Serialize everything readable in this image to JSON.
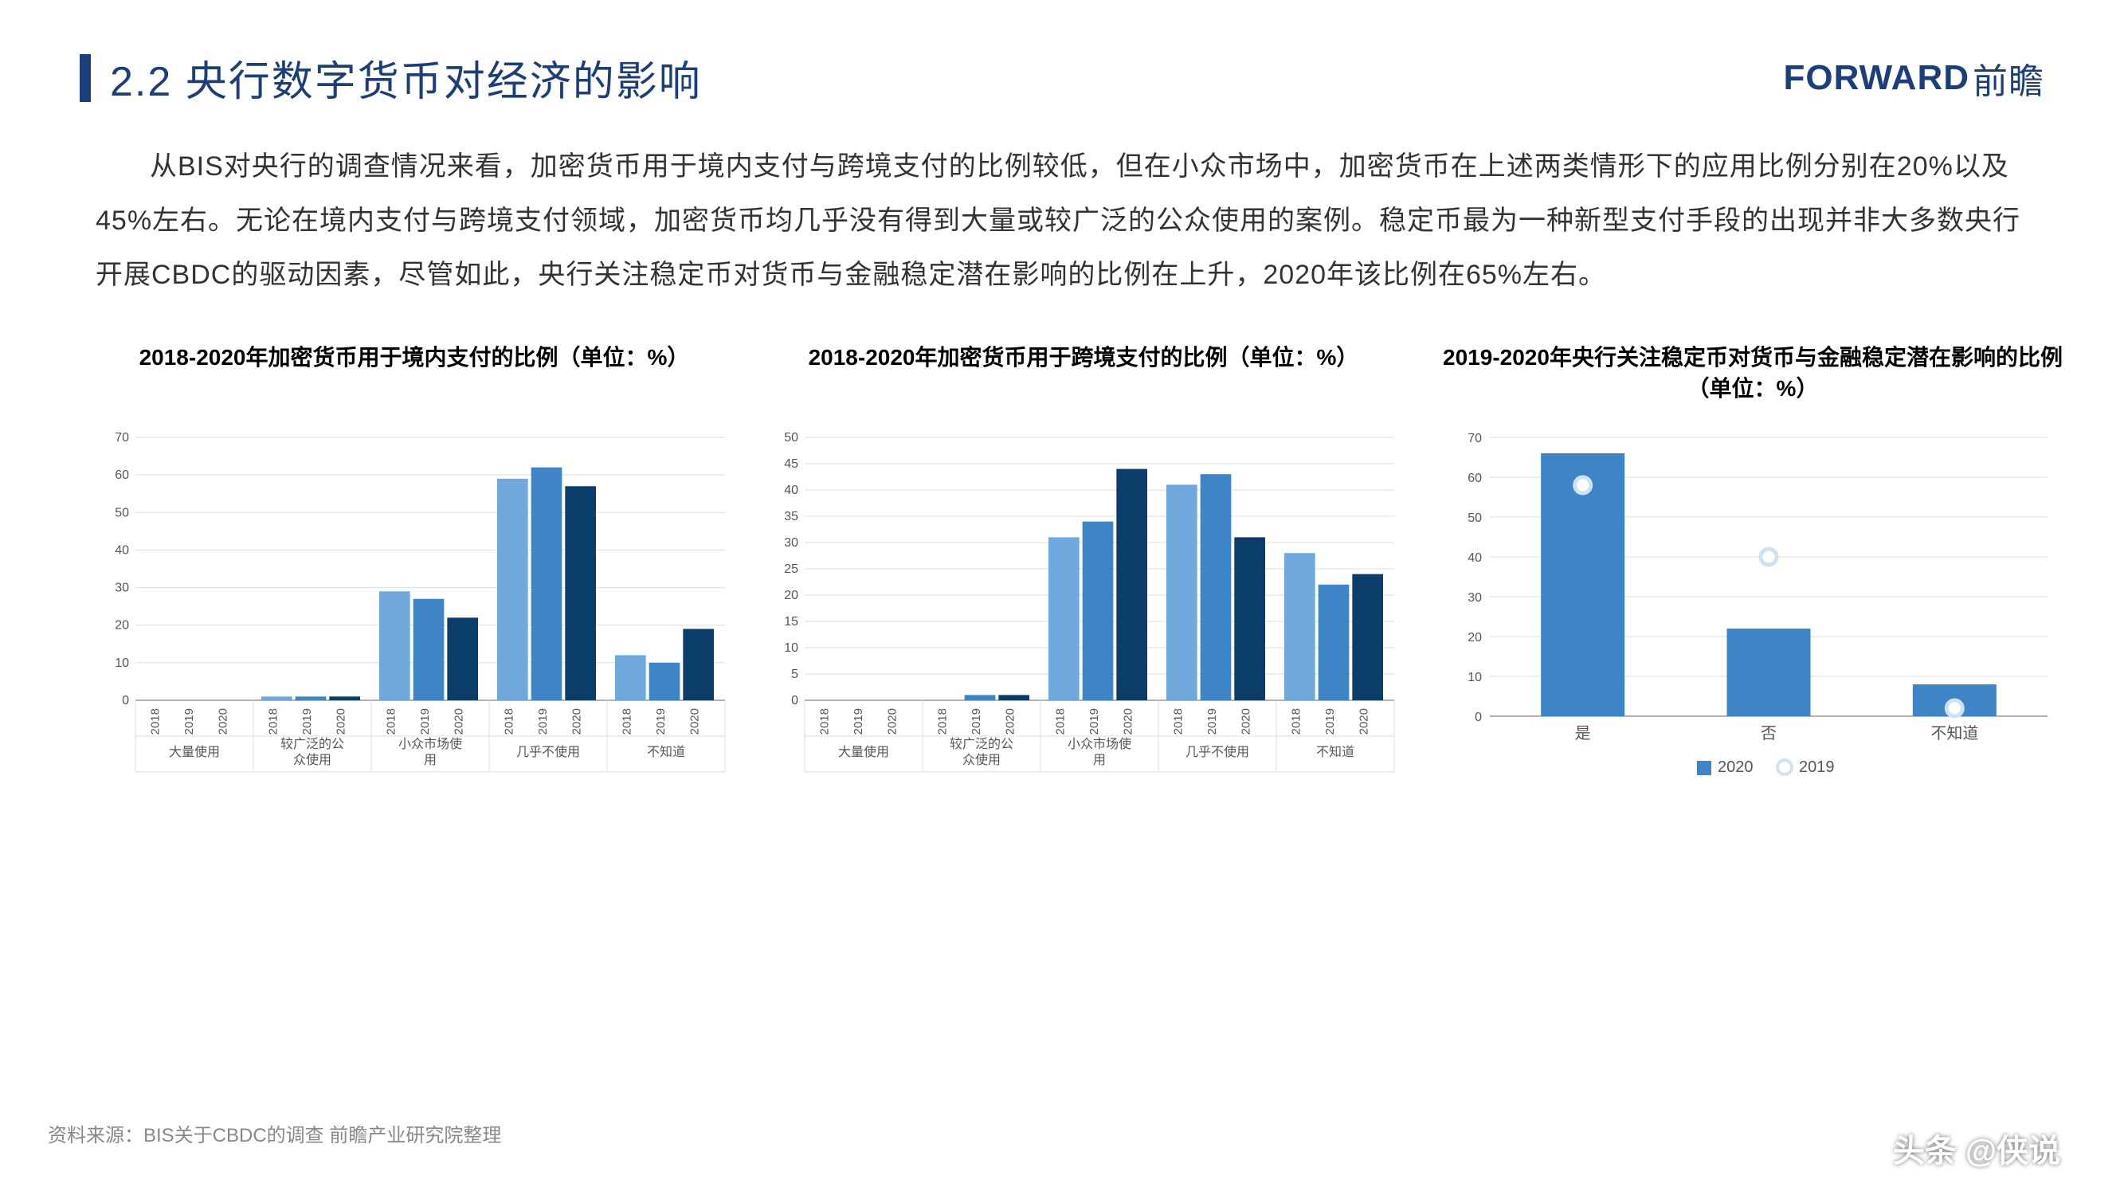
{
  "header": {
    "section_number": "2.2",
    "title": "央行数字货币对经济的影响",
    "logo_en": "FORWARD",
    "logo_cn": "前瞻"
  },
  "body_paragraph": "从BIS对央行的调查情况来看，加密货币用于境内支付与跨境支付的比例较低，但在小众市场中，加密货币在上述两类情形下的应用比例分别在20%以及45%左右。无论在境内支付与跨境支付领域，加密货币均几乎没有得到大量或较广泛的公众使用的案例。稳定币最为一种新型支付手段的出现并非大多数央行开展CBDC的驱动因素，尽管如此，央行关注稳定币对货币与金融稳定潜在影响的比例在上升，2020年该比例在65%左右。",
  "colors": {
    "year_2018": "#6fa8dc",
    "year_2019": "#3d85c6",
    "year_2020": "#0b3d6b",
    "bar_2020_c3": "#3d85c6",
    "dot_2019": "#cfe2f3",
    "axis": "#999999",
    "grid": "#dddddd",
    "text": "#555555"
  },
  "chart1": {
    "type": "grouped-bar",
    "title": "2018-2020年加密货币用于境内支付的比例（单位：%）",
    "categories": [
      "大量使用",
      "较广泛的公众使用",
      "小众市场使用",
      "几乎不使用",
      "不知道"
    ],
    "years": [
      "2018",
      "2019",
      "2020"
    ],
    "values": [
      [
        0,
        0,
        0
      ],
      [
        1,
        1,
        1
      ],
      [
        29,
        27,
        22
      ],
      [
        59,
        62,
        57
      ],
      [
        12,
        10,
        19
      ]
    ],
    "ylim": [
      0,
      70
    ],
    "ytick_step": 10,
    "bar_colors": [
      "#6fa8dc",
      "#3d85c6",
      "#0b3d6b"
    ]
  },
  "chart2": {
    "type": "grouped-bar",
    "title": "2018-2020年加密货币用于跨境支付的比例（单位：%）",
    "categories": [
      "大量使用",
      "较广泛的公众使用",
      "小众市场使用",
      "几乎不使用",
      "不知道"
    ],
    "years": [
      "2018",
      "2019",
      "2020"
    ],
    "values": [
      [
        0,
        0,
        0
      ],
      [
        0,
        1,
        1
      ],
      [
        31,
        34,
        44
      ],
      [
        41,
        43,
        31
      ],
      [
        28,
        22,
        24
      ]
    ],
    "ylim": [
      0,
      50
    ],
    "ytick_step": 5,
    "bar_colors": [
      "#6fa8dc",
      "#3d85c6",
      "#0b3d6b"
    ]
  },
  "chart3": {
    "type": "bar-with-dots",
    "title": "2019-2020年央行关注稳定币对货币与金融稳定潜在影响的比例（单位：%）",
    "categories": [
      "是",
      "否",
      "不知道"
    ],
    "bar_series_label": "2020",
    "dot_series_label": "2019",
    "bar_values": [
      66,
      22,
      8
    ],
    "dot_values": [
      58,
      40,
      2
    ],
    "ylim": [
      0,
      70
    ],
    "ytick_step": 10,
    "bar_color": "#3d85c6",
    "dot_color": "#ffffff",
    "dot_border": "#cfe2f3"
  },
  "footer": {
    "source": "资料来源：BIS关于CBDC的调查  前瞻产业研究院整理",
    "attribution": "头条 @侠说"
  }
}
